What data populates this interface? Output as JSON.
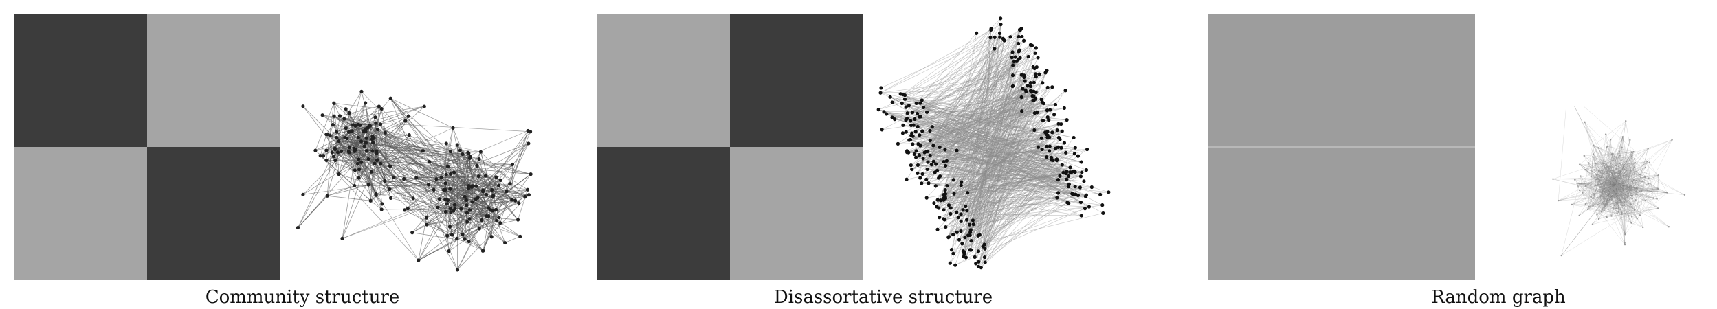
{
  "panels": [
    {
      "caption": "Community structure",
      "matrix": {
        "blocks": [
          [
            "dark",
            "light"
          ],
          [
            "light",
            "dark"
          ]
        ]
      },
      "graph": {
        "layout": "two-clusters",
        "edge_color": "#555555",
        "node_color": "#222222"
      }
    },
    {
      "caption": "Disassortative structure",
      "matrix": {
        "blocks": [
          [
            "light",
            "dark"
          ],
          [
            "dark",
            "light"
          ]
        ]
      },
      "graph": {
        "layout": "bipartite-bands",
        "edge_color": "#8c8c8c",
        "node_color": "#111111"
      }
    },
    {
      "caption": "Random graph",
      "matrix": {
        "blocks": [
          [
            "medium",
            "medium"
          ],
          [
            "medium",
            "medium"
          ]
        ]
      },
      "graph": {
        "layout": "hairball",
        "edge_color": "#777777",
        "node_color": "#999999"
      }
    }
  ],
  "colors": {
    "dark": "#3c3c3c",
    "light": "#a5a5a5",
    "medium": "#9d9d9d"
  }
}
